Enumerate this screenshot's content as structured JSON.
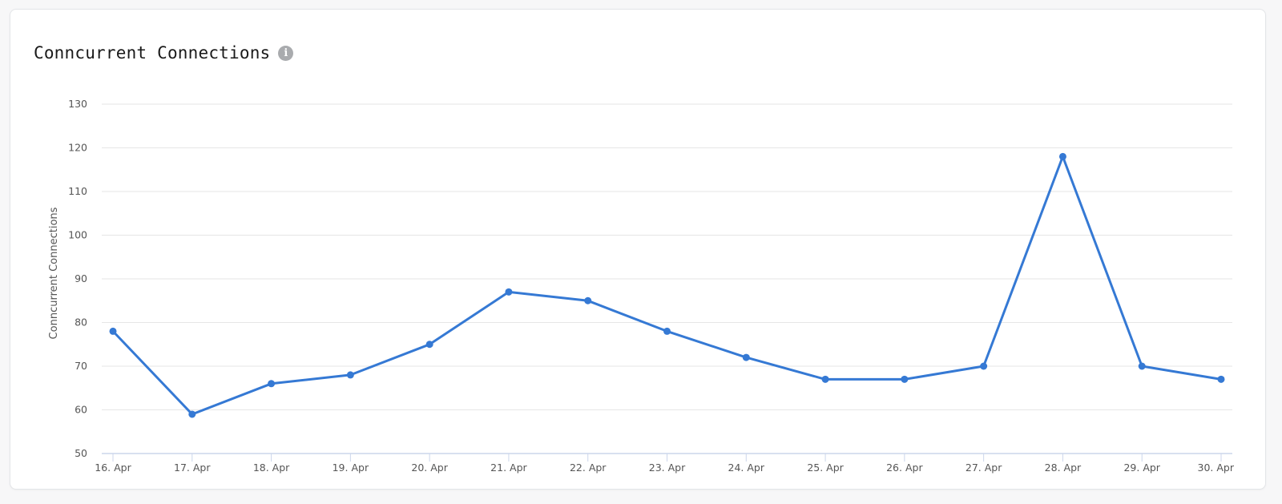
{
  "card": {
    "title": "Conncurrent Connections",
    "info_icon": "info-icon"
  },
  "colors": {
    "series": "#3579d4",
    "grid": "#e6e6e6",
    "axis": "#ccd6eb",
    "text": "#555555"
  },
  "chart_data": {
    "type": "line",
    "title": "Conncurrent Connections",
    "xlabel": "",
    "ylabel": "Conncurrent Connections",
    "ylim": [
      50,
      130
    ],
    "yticks": [
      50,
      60,
      70,
      80,
      90,
      100,
      110,
      120,
      130
    ],
    "grid": true,
    "legend": "none",
    "categories": [
      "16. Apr",
      "17. Apr",
      "18. Apr",
      "19. Apr",
      "20. Apr",
      "21. Apr",
      "22. Apr",
      "23. Apr",
      "24. Apr",
      "25. Apr",
      "26. Apr",
      "27. Apr",
      "28. Apr",
      "29. Apr",
      "30. Apr"
    ],
    "series": [
      {
        "name": "Conncurrent Connections",
        "values": [
          78,
          59,
          66,
          68,
          75,
          87,
          85,
          78,
          72,
          67,
          67,
          70,
          118,
          70,
          67
        ]
      }
    ]
  }
}
